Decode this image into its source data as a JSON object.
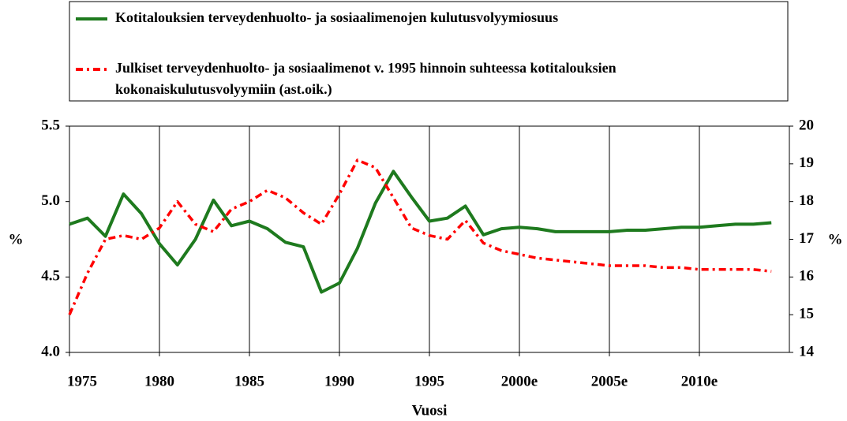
{
  "chart_data": {
    "type": "line",
    "x": [
      1975,
      1976,
      1977,
      1978,
      1979,
      1980,
      1981,
      1982,
      1983,
      1984,
      1985,
      1986,
      1987,
      1988,
      1989,
      1990,
      1991,
      1992,
      1993,
      1994,
      1995,
      1996,
      1997,
      1998,
      1999,
      2000,
      2001,
      2002,
      2003,
      2004,
      2005,
      2006,
      2007,
      2008,
      2009,
      2010,
      2011,
      2012,
      2013,
      2014
    ],
    "series": [
      {
        "name": "Kotitalouksien terveydenhuolto- ja sosiaalimenojen kulutusvolyymiosuus",
        "color": "#1e7a1e",
        "axis": "y",
        "values": [
          4.85,
          4.89,
          4.77,
          5.05,
          4.92,
          4.72,
          4.58,
          4.75,
          5.01,
          4.84,
          4.87,
          4.82,
          4.73,
          4.7,
          4.4,
          4.46,
          4.69,
          4.99,
          5.2,
          5.03,
          4.87,
          4.89,
          4.97,
          4.78,
          4.82,
          4.83,
          4.82,
          4.8,
          4.8,
          4.8,
          4.8,
          4.81,
          4.81,
          4.82,
          4.83,
          4.83,
          4.84,
          4.85,
          4.85,
          4.86
        ]
      },
      {
        "name": "Julkiset terveydenhuolto- ja sosiaalimenot v. 1995 hinnoin suhteessa kotitalouksien kokonaiskulutusvolyymiin (ast.oik.)",
        "color": "#ff0000",
        "axis": "y2",
        "dash": true,
        "values": [
          15.0,
          16.1,
          17.0,
          17.1,
          17.0,
          17.3,
          18.0,
          17.4,
          17.2,
          17.8,
          18.0,
          18.3,
          18.1,
          17.7,
          17.4,
          18.2,
          19.1,
          18.9,
          18.1,
          17.3,
          17.1,
          17.0,
          17.5,
          16.9,
          16.7,
          16.6,
          16.5,
          16.45,
          16.4,
          16.35,
          16.3,
          16.3,
          16.3,
          16.25,
          16.25,
          16.2,
          16.2,
          16.2,
          16.2,
          16.15
        ]
      }
    ],
    "xlim": [
      1975,
      2015
    ],
    "xticks": [
      1975,
      1980,
      1985,
      1990,
      1995,
      {
        "value": 2000,
        "label": "2000e"
      },
      {
        "value": 2005,
        "label": "2005e"
      },
      {
        "value": 2010,
        "label": "2010e"
      }
    ],
    "ylim": [
      4,
      5.5
    ],
    "yticks": [
      {
        "value": 4,
        "label": "4.0"
      },
      4.5,
      {
        "value": 5,
        "label": "5.0"
      },
      5.5
    ],
    "y2lim": [
      14,
      20
    ],
    "y2ticks": [
      14,
      15,
      16,
      17,
      18,
      19,
      20
    ],
    "ylabel": "%",
    "y2label": "%",
    "xlabel": "Vuosi",
    "grid_x": true
  }
}
